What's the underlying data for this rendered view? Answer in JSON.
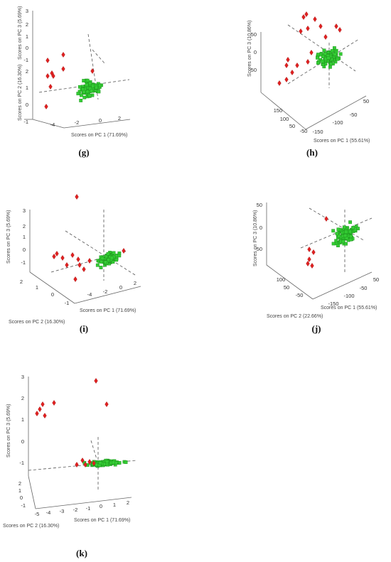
{
  "figure": {
    "panels": [
      {
        "id": "g",
        "caption": "(g)"
      },
      {
        "id": "h",
        "caption": "(h)"
      },
      {
        "id": "i",
        "caption": "(i)"
      },
      {
        "id": "j",
        "caption": "(j)"
      },
      {
        "id": "k",
        "caption": "(k)"
      }
    ]
  },
  "chart_data": [
    {
      "type": "scatter",
      "panel": "g",
      "xlabel": "Scores on PC 1 (71.69%)",
      "ylabel": "Scores on PC 2 (16.30%)",
      "zlabel": "Scores on PC 3 (5.69%)",
      "x_ticks": [
        "-4",
        "-2",
        "0",
        "2"
      ],
      "y_ticks": [
        "-1",
        "0",
        "1",
        "2"
      ],
      "z_ticks": [
        "-1",
        "0",
        "1",
        "2",
        "3"
      ],
      "xlim": [
        -5,
        3
      ],
      "ylim": [
        -1,
        2
      ],
      "zlim": [
        -1,
        3
      ],
      "series": [
        {
          "marker": "square",
          "color": "#33cc33"
        },
        {
          "marker": "diamond",
          "color": "#e02020"
        }
      ]
    },
    {
      "type": "scatter",
      "panel": "h",
      "xlabel": "Scores on PC 1 (55.61%)",
      "ylabel": "",
      "zlabel": "Scores on PC 3 (10.86%)",
      "x_ticks": [
        "-150",
        "-100",
        "-50",
        "50"
      ],
      "y_ticks": [
        "-50",
        "50",
        "100",
        "150"
      ],
      "z_ticks": [
        "-50",
        "0",
        "50"
      ],
      "xlim": [
        -150,
        50
      ],
      "ylim": [
        -50,
        150
      ],
      "zlim": [
        -50,
        50
      ],
      "series": [
        {
          "marker": "square",
          "color": "#33cc33"
        },
        {
          "marker": "diamond",
          "color": "#e02020"
        }
      ]
    },
    {
      "type": "scatter",
      "panel": "i",
      "xlabel": "Scores on PC 1 (71.69%)",
      "ylabel": "Scores on PC 2 (16.30%)",
      "zlabel": "Scores on PC 3 (5.69%)",
      "x_ticks": [
        "-4",
        "-2",
        "0",
        "2"
      ],
      "y_ticks": [
        "-1",
        "0",
        "1",
        "2"
      ],
      "z_ticks": [
        "-1",
        "0",
        "1",
        "2",
        "3"
      ],
      "xlim": [
        -5,
        3
      ],
      "ylim": [
        -1,
        2
      ],
      "zlim": [
        -1,
        3
      ],
      "series": [
        {
          "marker": "square",
          "color": "#33cc33"
        },
        {
          "marker": "diamond",
          "color": "#e02020"
        }
      ]
    },
    {
      "type": "scatter",
      "panel": "j",
      "xlabel": "Scores on PC 1 (55.61%)",
      "ylabel": "Scores on PC 2 (22.66%)",
      "zlabel": "Scores on PC 3 (10.86%)",
      "x_ticks": [
        "-150",
        "-100",
        "-50",
        "50"
      ],
      "y_ticks": [
        "-50",
        "50",
        "100"
      ],
      "z_ticks": [
        "-50",
        "0",
        "50"
      ],
      "xlim": [
        -150,
        50
      ],
      "ylim": [
        -50,
        100
      ],
      "zlim": [
        -50,
        50
      ],
      "series": [
        {
          "marker": "square",
          "color": "#33cc33"
        },
        {
          "marker": "diamond",
          "color": "#e02020"
        }
      ]
    },
    {
      "type": "scatter",
      "panel": "k",
      "xlabel": "Scores on PC 1 (71.69%)",
      "ylabel": "Scores on PC 2 (16.30%)",
      "zlabel": "Scores on PC 3 (5.69%)",
      "x_ticks": [
        "-5",
        "-4",
        "-3",
        "-2",
        "-1",
        "0",
        "1",
        "2"
      ],
      "y_ticks": [
        "-1",
        "0",
        "1",
        "2"
      ],
      "z_ticks": [
        "-1",
        "0",
        "1",
        "2",
        "3"
      ],
      "xlim": [
        -5,
        3
      ],
      "ylim": [
        -1,
        2
      ],
      "zlim": [
        -1,
        3
      ],
      "series": [
        {
          "marker": "square",
          "color": "#33cc33"
        },
        {
          "marker": "diamond",
          "color": "#e02020"
        }
      ]
    }
  ]
}
